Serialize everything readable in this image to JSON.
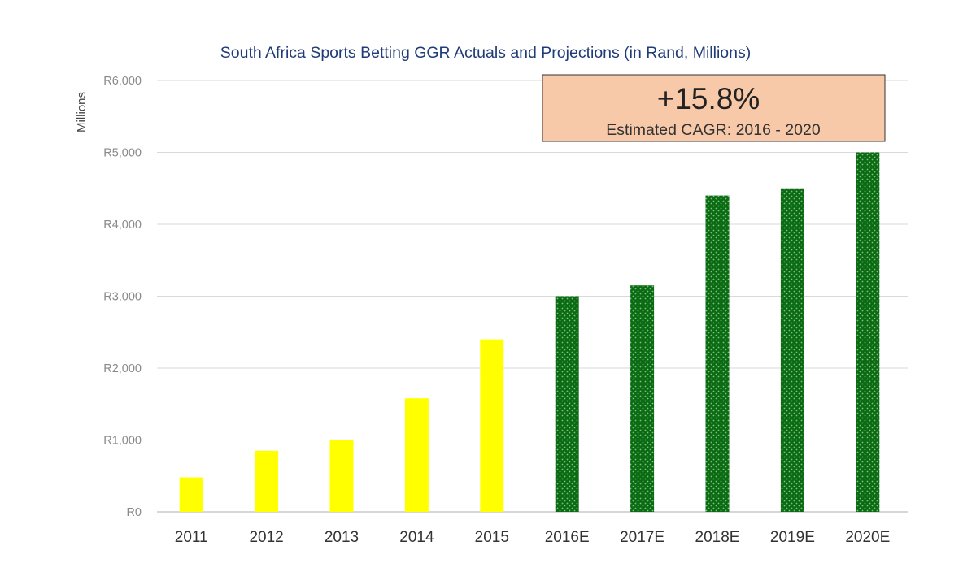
{
  "chart_data": {
    "type": "bar",
    "title": "South Africa Sports Betting GGR Actuals and Projections (in Rand, Millions)",
    "ylabel": "Millions",
    "xlabel": "",
    "categories": [
      "2011",
      "2012",
      "2013",
      "2014",
      "2015",
      "2016E",
      "2017E",
      "2018E",
      "2019E",
      "2020E"
    ],
    "values": [
      480,
      850,
      1000,
      1580,
      2400,
      3000,
      3150,
      4400,
      4500,
      5000
    ],
    "value_type": [
      "actual",
      "actual",
      "actual",
      "actual",
      "actual",
      "projection",
      "projection",
      "projection",
      "projection",
      "projection"
    ],
    "ylim": [
      0,
      6000
    ],
    "yticks": [
      0,
      1000,
      2000,
      3000,
      4000,
      5000,
      6000
    ],
    "ytick_labels": [
      "R0",
      "R1,000",
      "R2,000",
      "R3,000",
      "R4,000",
      "R5,000",
      "R6,000"
    ],
    "grid": true,
    "legend": "none",
    "colors": {
      "actual": "#ffff00",
      "projection": "#0b6b12",
      "projection_dots": "#7fbf86",
      "title": "#1f3c78"
    },
    "annotation": {
      "value": "+15.8%",
      "label": "Estimated CAGR: 2016 - 2020"
    }
  }
}
